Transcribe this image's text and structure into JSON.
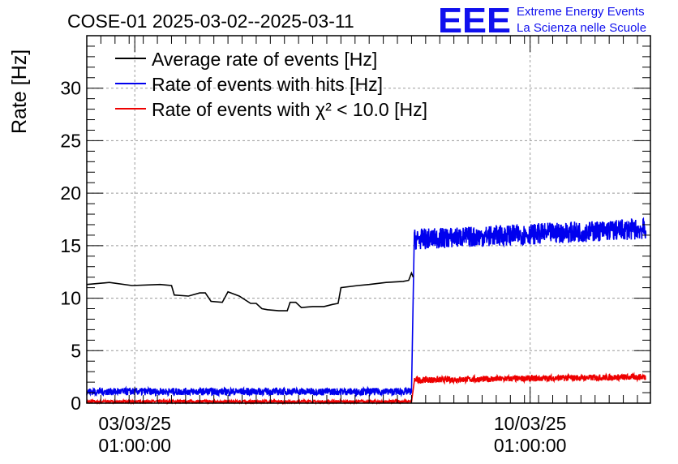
{
  "logo": {
    "mark": "EEE",
    "line1": "Extreme Energy Events",
    "line2": "La Scienza nelle Scuole",
    "color": "#1010ee"
  },
  "chart_data": {
    "type": "line",
    "title": "COSE-01 2025-03-02--2025-03-11",
    "xlabel": "",
    "ylabel": "Rate [Hz]",
    "ylim": [
      0,
      35
    ],
    "yticks": [
      0,
      5,
      10,
      15,
      20,
      25,
      30
    ],
    "xlim_days": [
      0,
      9.98
    ],
    "xticks": [
      {
        "day": 0.85,
        "date": "03/03/25",
        "time": "01:00:00"
      },
      {
        "day": 7.85,
        "date": "10/03/25",
        "time": "01:00:00"
      }
    ],
    "grid": true,
    "legend_position": "top-left",
    "series": [
      {
        "name": "Average rate of events [Hz]",
        "color": "#000000",
        "points": [
          [
            0.0,
            11.3
          ],
          [
            0.4,
            11.5
          ],
          [
            0.8,
            11.2
          ],
          [
            1.3,
            11.3
          ],
          [
            1.5,
            11.2
          ],
          [
            1.55,
            10.3
          ],
          [
            1.8,
            10.2
          ],
          [
            2.0,
            10.5
          ],
          [
            2.1,
            10.5
          ],
          [
            2.2,
            9.7
          ],
          [
            2.4,
            9.6
          ],
          [
            2.5,
            10.6
          ],
          [
            2.7,
            10.2
          ],
          [
            2.9,
            9.5
          ],
          [
            3.0,
            9.5
          ],
          [
            3.1,
            9.0
          ],
          [
            3.2,
            8.9
          ],
          [
            3.4,
            8.8
          ],
          [
            3.55,
            8.8
          ],
          [
            3.6,
            9.6
          ],
          [
            3.7,
            9.6
          ],
          [
            3.8,
            9.1
          ],
          [
            4.0,
            9.2
          ],
          [
            4.2,
            9.2
          ],
          [
            4.35,
            9.4
          ],
          [
            4.45,
            9.5
          ],
          [
            4.5,
            11.0
          ],
          [
            4.8,
            11.2
          ],
          [
            5.0,
            11.3
          ],
          [
            5.3,
            11.5
          ],
          [
            5.6,
            11.6
          ],
          [
            5.7,
            11.7
          ],
          [
            5.75,
            12.4
          ],
          [
            5.78,
            12.0
          ]
        ]
      },
      {
        "name": "Rate of events with hits [Hz]",
        "color": "#0000ee",
        "segments": [
          {
            "from": 0.0,
            "to": 5.75,
            "mean": 1.1,
            "noise": 0.35
          },
          {
            "from": 5.8,
            "to": 9.9,
            "mean_start": 15.6,
            "mean_end": 16.6,
            "noise": 1.0
          }
        ],
        "jump_at": 5.77
      },
      {
        "name": "Rate of events with χ² < 10.0 [Hz]",
        "color": "#ee0000",
        "segments": [
          {
            "from": 0.0,
            "to": 5.75,
            "mean": 0.15,
            "noise": 0.12
          },
          {
            "from": 5.8,
            "to": 9.9,
            "mean_start": 2.2,
            "mean_end": 2.5,
            "noise": 0.3
          }
        ],
        "jump_at": 5.77
      }
    ]
  }
}
